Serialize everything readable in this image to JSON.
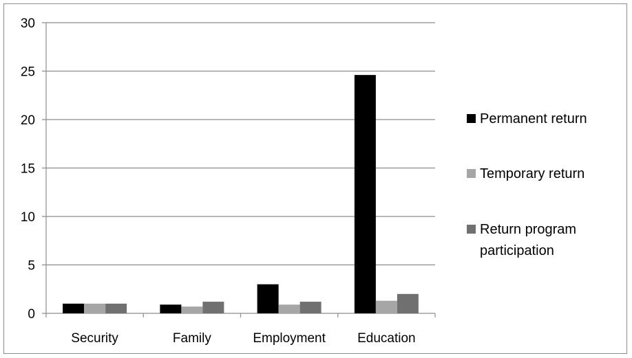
{
  "chart_data": {
    "type": "bar",
    "categories": [
      "Security",
      "Family",
      "Employment",
      "Education"
    ],
    "series": [
      {
        "name": "Permanent return",
        "values": [
          1.0,
          0.9,
          3.0,
          24.6
        ]
      },
      {
        "name": "Temporary return",
        "values": [
          1.0,
          0.7,
          0.9,
          1.3
        ]
      },
      {
        "name": "Return program participation",
        "values": [
          1.0,
          1.2,
          1.2,
          2.0
        ]
      }
    ],
    "ylim": [
      0,
      30
    ],
    "yticks": [
      "0",
      "5",
      "10",
      "15",
      "20",
      "25",
      "30"
    ],
    "grid": true,
    "legend_position": "right",
    "legend_labels": [
      [
        "Permanent return"
      ],
      [
        "Temporary return"
      ],
      [
        "Return program",
        "participation"
      ]
    ],
    "colors": {
      "Permanent return": "#000000",
      "Temporary return": "#a6a6a6",
      "Return program participation": "#707070",
      "grid": "#8c8c8c"
    }
  }
}
